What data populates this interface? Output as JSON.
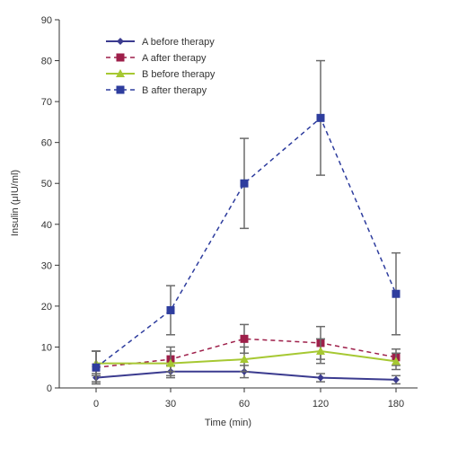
{
  "chart_data": {
    "type": "line",
    "title": "",
    "xlabel": "Time (min)",
    "ylabel": "Insulin (μIU/ml)",
    "x": [
      0,
      30,
      60,
      120,
      180
    ],
    "x_tick_labels": [
      "0",
      "30",
      "60",
      "120",
      "180"
    ],
    "ylim": [
      0,
      90
    ],
    "y_ticks": [
      0,
      10,
      20,
      30,
      40,
      50,
      60,
      70,
      80,
      90
    ],
    "grid": false,
    "legend_position": "top-left",
    "series": [
      {
        "name": "A before therapy",
        "color": "#3b3b8f",
        "line_style": "solid",
        "marker": "diamond",
        "values": [
          2.5,
          4,
          4,
          2.5,
          2
        ],
        "error": [
          1,
          1.5,
          1.5,
          1,
          1
        ]
      },
      {
        "name": "A after therapy",
        "color": "#9e1f4a",
        "line_style": "dashed",
        "marker": "square",
        "values": [
          5,
          7,
          12,
          11,
          7.5
        ],
        "error": [
          4,
          3,
          3.5,
          4,
          2
        ]
      },
      {
        "name": "B before therapy",
        "color": "#a6c832",
        "line_style": "solid",
        "marker": "triangle",
        "values": [
          6,
          6,
          7,
          9,
          6.5
        ],
        "error": [
          3,
          3,
          3,
          3,
          2
        ]
      },
      {
        "name": "B after therapy",
        "color": "#2e3d9e",
        "line_style": "dashed",
        "marker": "square",
        "values": [
          5,
          19,
          50,
          66,
          23
        ],
        "error": [
          4,
          6,
          11,
          14,
          10
        ]
      }
    ]
  }
}
